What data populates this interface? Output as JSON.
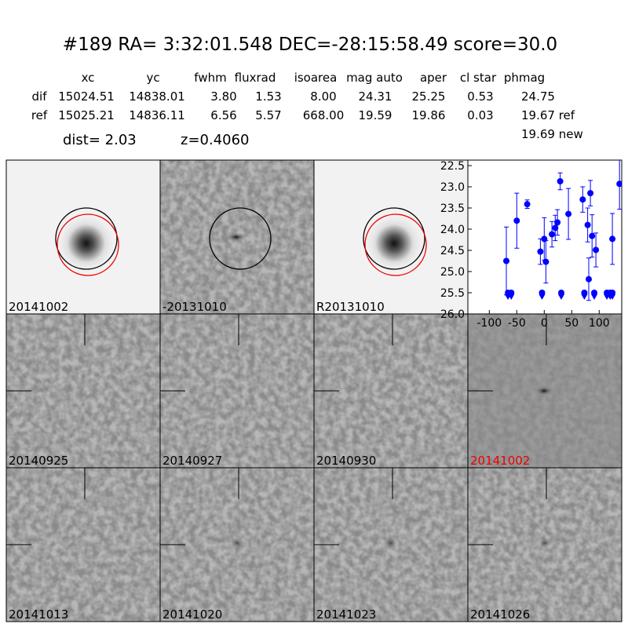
{
  "header": {
    "title": "#189   RA= 3:32:01.548 DEC=-28:15:58.49      score=30.0",
    "dist": "dist=  2.03",
    "z": "z=0.4060"
  },
  "table": {
    "columns": [
      "xc",
      "yc",
      "fwhm",
      "fluxrad",
      "isoarea",
      "mag auto",
      "aper",
      "cl star",
      "phmag"
    ],
    "rows": [
      [
        "dif",
        "15024.51",
        "14838.01",
        "3.80",
        "1.53",
        "8.00",
        "24.31",
        "25.25",
        "0.53",
        "24.75"
      ],
      [
        "ref",
        "15025.21",
        "14836.11",
        "6.56",
        "5.57",
        "668.00",
        "19.59",
        "19.86",
        "0.03",
        "19.67 ref"
      ]
    ],
    "extra": "19.69 new"
  },
  "panels": [
    "20141002",
    "-20131010",
    "R20131010",
    "20140925",
    "20140927",
    "20140930",
    "20141002",
    "20141013",
    "20141020",
    "20141023",
    "20141026"
  ],
  "chart_data": {
    "type": "errorbar",
    "xlim": [
      -139,
      141
    ],
    "xticks": [
      -100,
      -50,
      0,
      50,
      100
    ],
    "ylim": [
      26.0,
      22.37
    ],
    "yticks": [
      22.5,
      {
        "value": 23,
        "label": "23.0"
      },
      23.5,
      {
        "value": 24,
        "label": "24.0"
      },
      24.5,
      {
        "value": 25,
        "label": "25.0"
      },
      25.5,
      {
        "value": 26,
        "label": "26.0"
      }
    ],
    "series": [
      {
        "color": "#0000ff",
        "marker": "o",
        "x": [
          -69,
          -50,
          -31,
          -7,
          0,
          3,
          14,
          20,
          24,
          29,
          44,
          70,
          79,
          81,
          84,
          87,
          94,
          124,
          137
        ],
        "values": [
          24.75,
          23.8,
          23.41,
          24.53,
          24.23,
          24.77,
          24.12,
          23.97,
          23.84,
          22.87,
          23.64,
          23.3,
          23.9,
          25.18,
          23.15,
          24.16,
          24.49,
          24.23,
          22.93
        ],
        "errors": [
          0.8,
          0.65,
          0.1,
          0.3,
          0.5,
          0.5,
          0.3,
          0.3,
          0.3,
          0.2,
          0.6,
          0.3,
          0.4,
          0.5,
          0.3,
          0.5,
          0.4,
          0.6,
          0.6
        ]
      },
      {
        "color": "#0000ff",
        "marker": "v",
        "x": [
          -66,
          -60,
          -4,
          31,
          73,
          91,
          114,
          120,
          124
        ],
        "values": [
          25.5,
          25.5,
          25.5,
          25.5,
          25.5,
          25.5,
          25.5,
          25.5,
          25.5
        ]
      }
    ]
  }
}
